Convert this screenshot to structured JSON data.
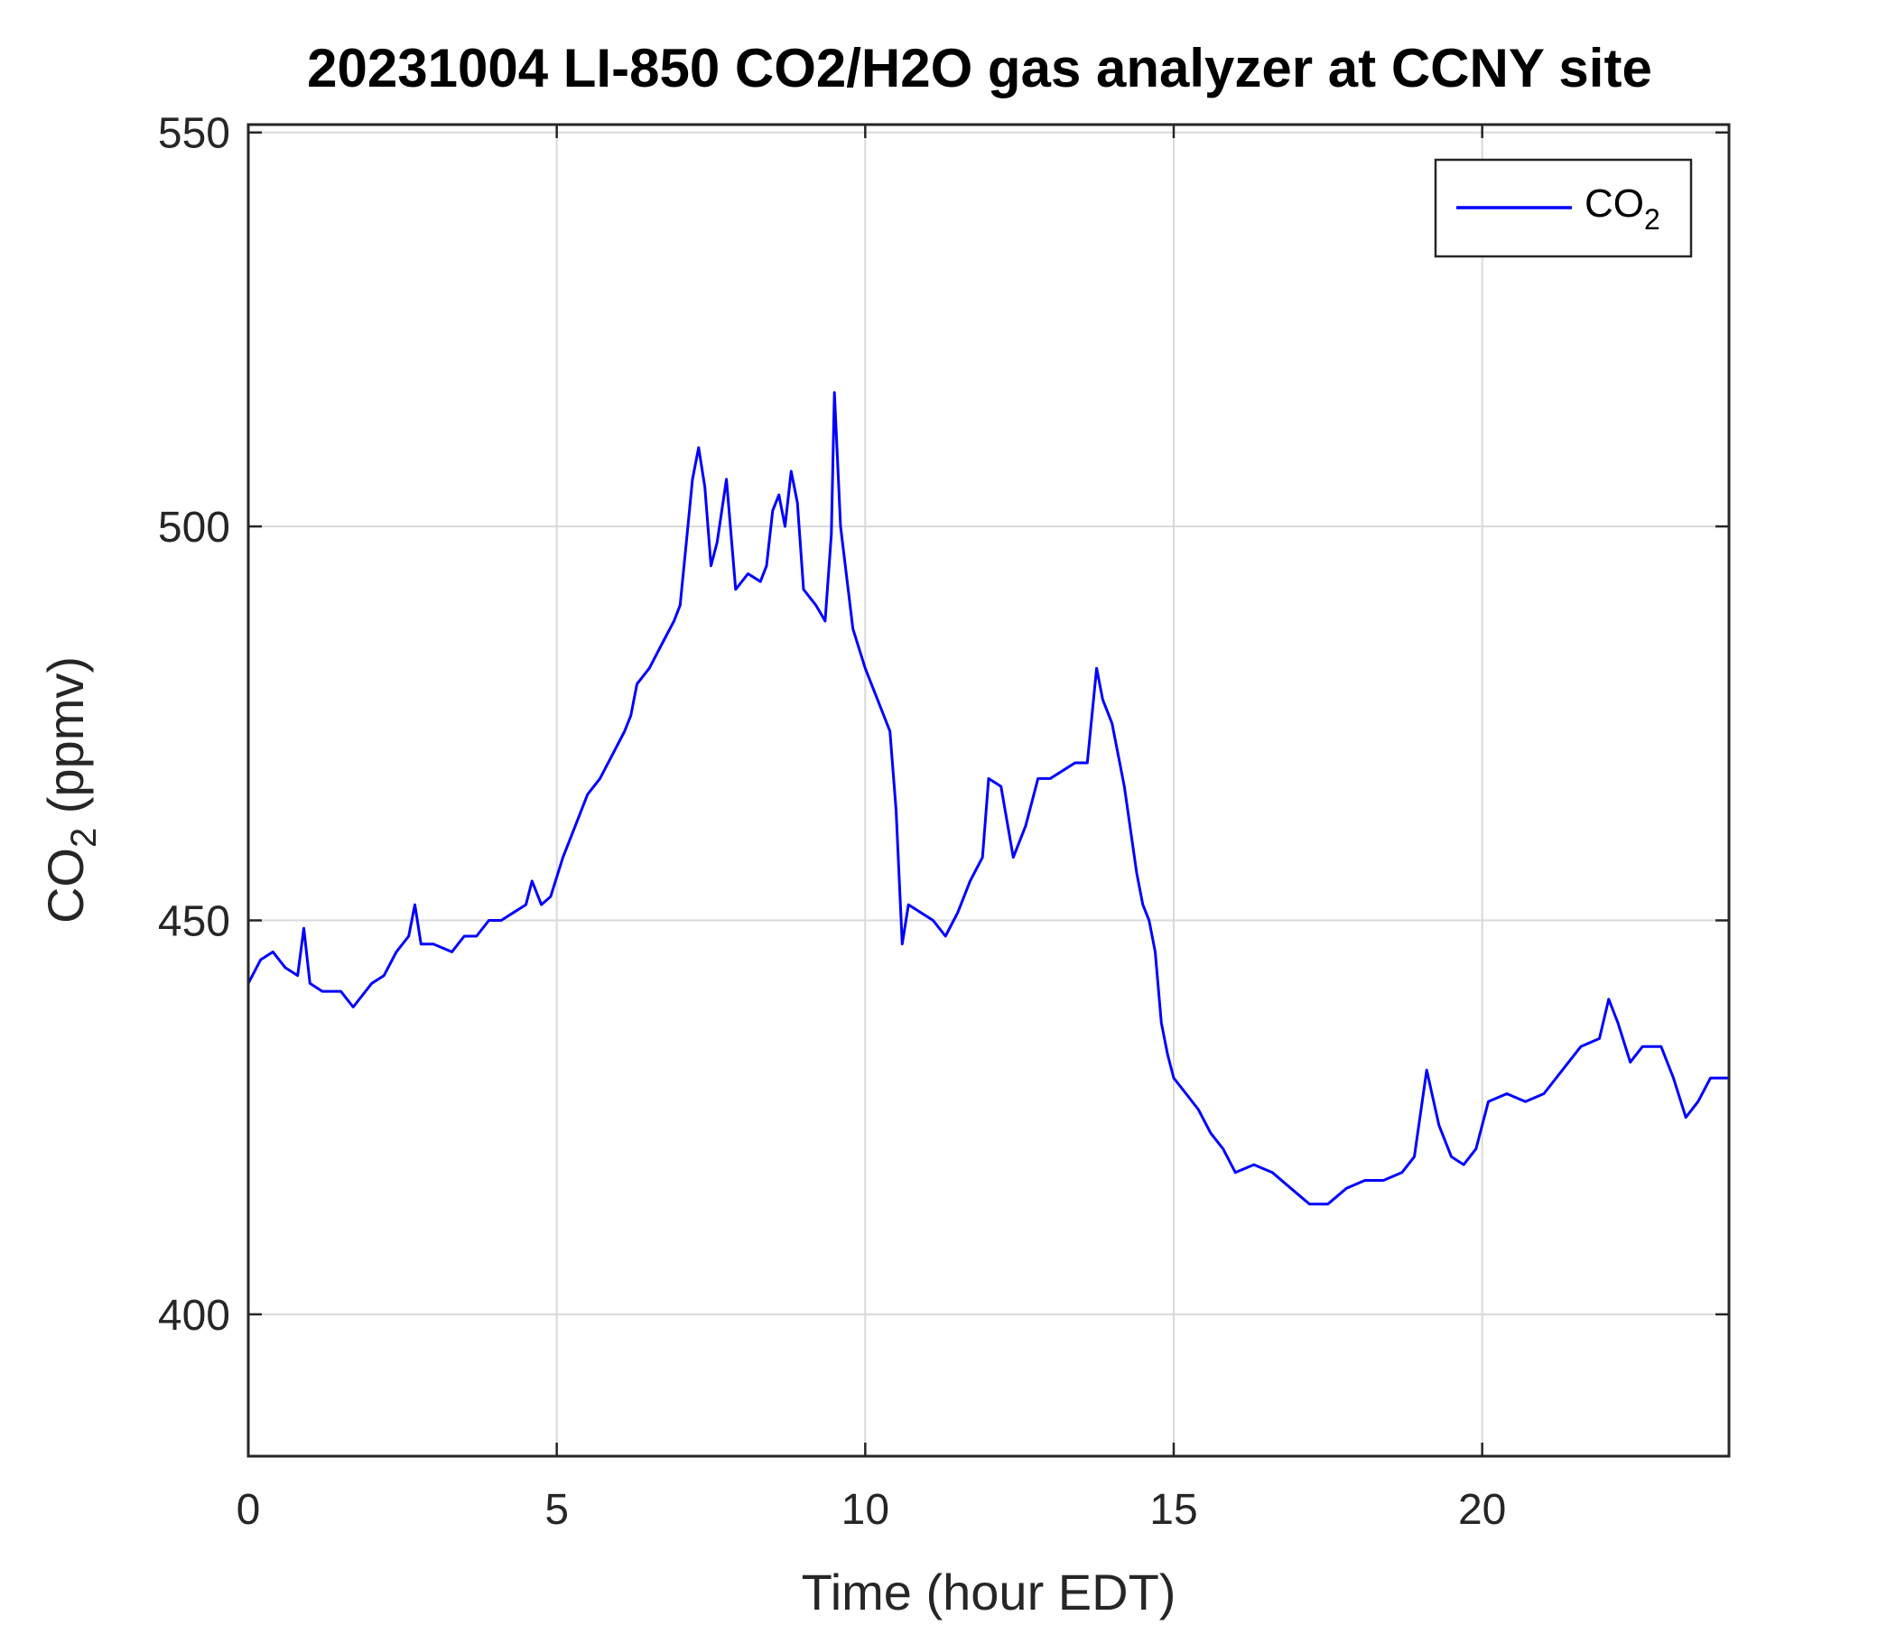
{
  "chart_data": {
    "type": "line",
    "title": "20231004 LI-850 CO2/H2O gas analyzer at CCNY site",
    "xlabel": "Time (hour EDT)",
    "ylabel": {
      "main": "CO",
      "sub": "2",
      "suffix": " (ppmv)"
    },
    "xlim": [
      0,
      24
    ],
    "ylim": [
      382,
      551
    ],
    "xticks": [
      0,
      5,
      10,
      15,
      20
    ],
    "yticks": [
      400,
      450,
      500,
      550
    ],
    "grid": true,
    "legend": {
      "position": "top-right",
      "entries": [
        {
          "main": "CO",
          "sub": "2"
        }
      ]
    },
    "series": [
      {
        "name": "CO2",
        "color": "#0000ff",
        "x": [
          0.0,
          0.2,
          0.4,
          0.6,
          0.8,
          0.9,
          1.0,
          1.2,
          1.5,
          1.7,
          2.0,
          2.2,
          2.4,
          2.6,
          2.7,
          2.8,
          3.0,
          3.3,
          3.5,
          3.7,
          3.9,
          4.1,
          4.3,
          4.5,
          4.6,
          4.75,
          4.9,
          5.1,
          5.3,
          5.5,
          5.7,
          5.9,
          6.1,
          6.2,
          6.3,
          6.5,
          6.7,
          6.9,
          7.0,
          7.1,
          7.2,
          7.3,
          7.4,
          7.5,
          7.6,
          7.75,
          7.9,
          8.1,
          8.3,
          8.4,
          8.5,
          8.6,
          8.7,
          8.8,
          8.9,
          9.0,
          9.2,
          9.35,
          9.45,
          9.5,
          9.6,
          9.8,
          10.0,
          10.2,
          10.4,
          10.5,
          10.6,
          10.7,
          10.9,
          11.1,
          11.3,
          11.5,
          11.7,
          11.9,
          12.0,
          12.2,
          12.4,
          12.6,
          12.8,
          13.0,
          13.2,
          13.4,
          13.6,
          13.75,
          13.85,
          14.0,
          14.2,
          14.4,
          14.5,
          14.6,
          14.7,
          14.8,
          14.9,
          15.0,
          15.2,
          15.4,
          15.6,
          15.8,
          16.0,
          16.3,
          16.6,
          16.9,
          17.2,
          17.5,
          17.8,
          18.1,
          18.4,
          18.7,
          18.9,
          19.1,
          19.3,
          19.5,
          19.7,
          19.9,
          20.1,
          20.4,
          20.7,
          21.0,
          21.3,
          21.6,
          21.9,
          22.05,
          22.2,
          22.4,
          22.6,
          22.9,
          23.1,
          23.3,
          23.5,
          23.7,
          24.0
        ],
        "values": [
          442,
          445,
          446,
          444,
          443,
          449,
          442,
          441,
          441,
          439,
          442,
          443,
          446,
          448,
          452,
          447,
          447,
          446,
          448,
          448,
          450,
          450,
          451,
          452,
          455,
          452,
          453,
          458,
          462,
          466,
          468,
          471,
          474,
          476,
          480,
          482,
          485,
          488,
          490,
          498,
          506,
          510,
          505,
          495,
          498,
          506,
          492,
          494,
          493,
          495,
          502,
          504,
          500,
          507,
          503,
          492,
          490,
          488,
          499,
          517,
          500,
          487,
          482,
          478,
          474,
          464,
          447,
          452,
          451,
          450,
          448,
          451,
          455,
          458,
          468,
          467,
          458,
          462,
          468,
          468,
          469,
          470,
          470,
          482,
          478,
          475,
          467,
          456,
          452,
          450,
          446,
          437,
          433,
          430,
          428,
          426,
          423,
          421,
          418,
          419,
          418,
          416,
          414,
          414,
          416,
          417,
          417,
          418,
          420,
          431,
          424,
          420,
          419,
          421,
          427,
          428,
          427,
          428,
          431,
          434,
          435,
          440,
          437,
          432,
          434,
          434,
          430,
          425,
          427,
          430,
          430
        ]
      }
    ]
  }
}
